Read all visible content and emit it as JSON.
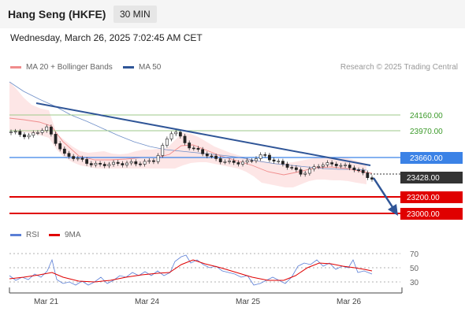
{
  "header": {
    "title": "Hang Seng (HKFE)",
    "timeframe": "30 MIN"
  },
  "datetime": "Wednesday, March 26, 2025 7:02:45 AM CET",
  "legend": {
    "ma20": {
      "label": "MA 20 + Bollinger Bands",
      "color": "#f08c8c"
    },
    "ma50": {
      "label": "MA 50",
      "color": "#2f5597"
    }
  },
  "credit": "Research © 2025 Trading Central",
  "levels": {
    "l24160": {
      "value": 24160,
      "label": "24160.00",
      "color": "#9ec98a",
      "text_color": "#3c9a2a"
    },
    "l23970": {
      "value": 23970,
      "label": "23970.00",
      "color": "#9ec98a",
      "text_color": "#3c9a2a"
    },
    "l23660": {
      "value": 23660,
      "label": "23660.00",
      "color": "#3b82e6",
      "text_color": "#ffffff"
    },
    "l23428": {
      "value": 23428,
      "label": "23428.00",
      "color": "#333333",
      "text_color": "#ffffff"
    },
    "l23200": {
      "value": 23200,
      "label": "23200.00",
      "color": "#e00000",
      "text_color": "#ffffff"
    },
    "l23000": {
      "value": 23000,
      "label": "23000.00",
      "color": "#e00000",
      "text_color": "#ffffff"
    }
  },
  "rsi_legend": {
    "rsi": {
      "label": "RSI",
      "color": "#5b7fd6"
    },
    "ma9": {
      "label": "9MA",
      "color": "#e00000"
    }
  },
  "rsi_axis": [
    "70",
    "50",
    "30"
  ],
  "x_axis": [
    "Mar 21",
    "Mar 24",
    "Mar 25",
    "Mar 26"
  ],
  "chart_data": {
    "type": "candlestick",
    "series": [
      {
        "name": "Hang Seng (HKFE)",
        "close_sample": [
          23950,
          23920,
          24000,
          23680,
          23620,
          23560,
          23600,
          23580,
          23640,
          23990,
          23760,
          23680,
          23590,
          23610,
          23680,
          23590,
          23470,
          23560,
          23590,
          23520,
          23420
        ]
      },
      {
        "name": "MA 20 + Bollinger Bands"
      },
      {
        "name": "MA 50"
      }
    ],
    "x": [
      "Mar 21",
      "Mar 24",
      "Mar 25",
      "Mar 26"
    ],
    "rsi_ticks": [
      70,
      50,
      30
    ],
    "last_price": 23428
  }
}
